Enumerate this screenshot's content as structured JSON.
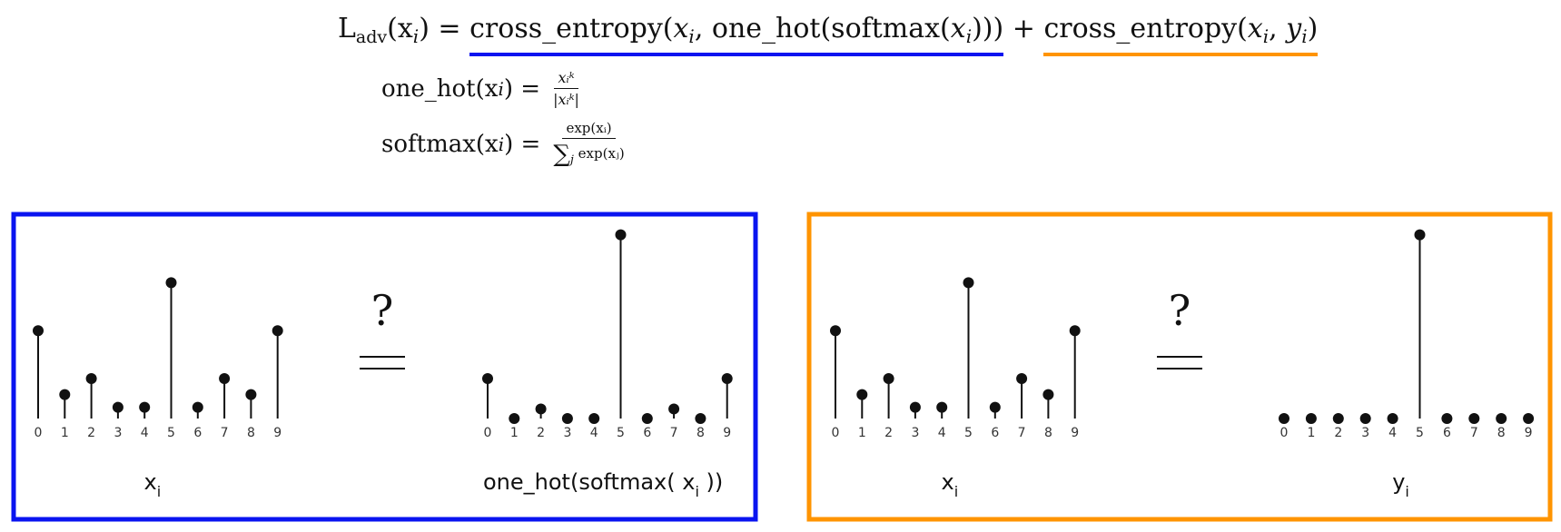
{
  "equation": {
    "lhs": "L",
    "lhs_sub": "adv",
    "lhs_arg": "(x",
    "lhs_arg_sub": "i",
    "lhs_close": ") = ",
    "term1_prefix": "cross_entropy(",
    "term1_x": "x",
    "term1_x_sub": "i",
    "term1_mid": ", one_hot(softmax(",
    "term1_x2": "x",
    "term1_x2_sub": "i",
    "term1_suffix": ")))",
    "plus": " + ",
    "term2_prefix": "cross_entropy(",
    "term2_x": "x",
    "term2_x_sub": "i",
    "term2_comma": ", ",
    "term2_y": "y",
    "term2_y_sub": "i",
    "term2_suffix": ")"
  },
  "onehot_def": {
    "lhs": "one_hot(x",
    "lhs_sub": "i",
    "lhs_close": ") = ",
    "num": "xᵢᵏ",
    "den": "|xᵢᵏ|"
  },
  "softmax_def": {
    "lhs": "softmax(x",
    "lhs_sub": "i",
    "lhs_close": ") = ",
    "num": "exp(xᵢ)",
    "den_sum": "∑",
    "den_sum_sub": "j",
    "den": " exp(xⱼ)"
  },
  "colors": {
    "blue": "#0a14f0",
    "orange": "#ff9400",
    "stem": "#111111"
  },
  "comparison_symbol": "?",
  "panels": [
    {
      "name": "blue",
      "left_chart": {
        "values": [
          0.55,
          0.15,
          0.25,
          0.07,
          0.07,
          0.85,
          0.07,
          0.25,
          0.15,
          0.55
        ],
        "label": "x",
        "label_sub": "i"
      },
      "right_chart": {
        "values": [
          0.25,
          0.0,
          0.06,
          0.0,
          0.0,
          1.15,
          0.0,
          0.06,
          0.0,
          0.25
        ],
        "label": "one_hot(softmax( x",
        "label_sub": "i",
        "label_tail": " ))"
      }
    },
    {
      "name": "orange",
      "left_chart": {
        "values": [
          0.55,
          0.15,
          0.25,
          0.07,
          0.07,
          0.85,
          0.07,
          0.25,
          0.15,
          0.55
        ],
        "label": "x",
        "label_sub": "i"
      },
      "right_chart": {
        "values": [
          0,
          0,
          0,
          0,
          0,
          1.15,
          0,
          0,
          0,
          0
        ],
        "label": "y",
        "label_sub": "i"
      }
    }
  ],
  "tick_labels": [
    "0",
    "1",
    "2",
    "3",
    "4",
    "5",
    "6",
    "7",
    "8",
    "9"
  ]
}
